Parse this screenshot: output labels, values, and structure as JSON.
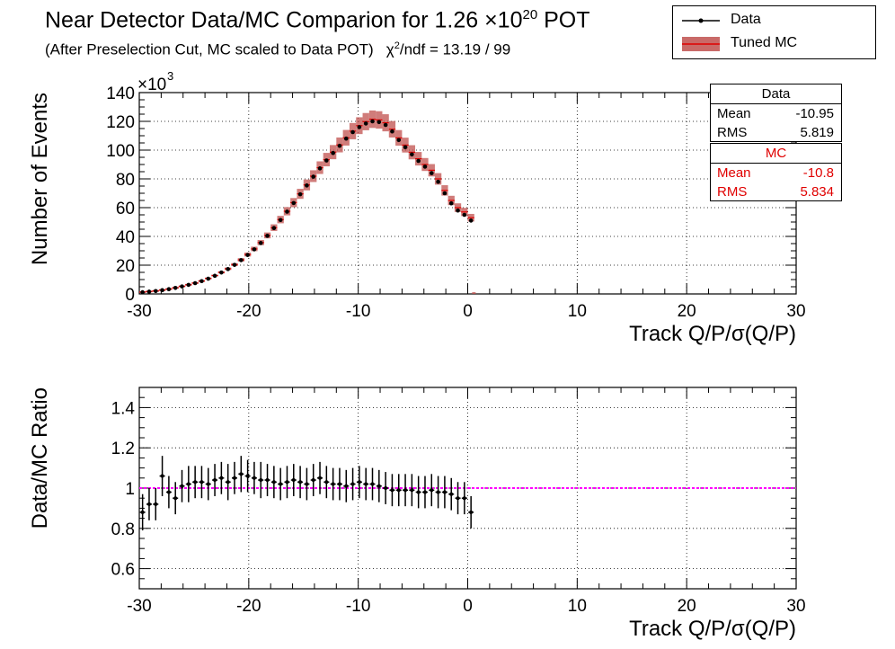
{
  "title_main": "Near Detector Data/MC Comparion for 1.26 ×10",
  "title_exp": "20",
  "title_tail": " POT",
  "subtitle_main": "(After Preselection Cut, MC scaled to Data POT)",
  "subtitle_chi": "χ",
  "subtitle_chi_exp": "2",
  "subtitle_tail": "/ndf = 13.19 / 99",
  "legend": {
    "data_label": "Data",
    "mc_label": "Tuned MC"
  },
  "stats_data": {
    "header": "Data",
    "mean_label": "Mean",
    "mean_value": "-10.95",
    "rms_label": "RMS",
    "rms_value": "5.819"
  },
  "stats_mc": {
    "header": "MC",
    "mean_label": "Mean",
    "mean_value": "-10.8",
    "rms_label": "RMS",
    "rms_value": "5.834"
  },
  "colors": {
    "data": "#000000",
    "mc_fill": "#c0504d",
    "mc_line": "#e00000",
    "ratio_line": "#ff00ff",
    "grid": "#000000"
  },
  "chart_data": [
    {
      "type": "line",
      "panel": "top",
      "xlabel": "Track Q/P/σ(Q/P)",
      "ylabel": "Number of Events",
      "y_multiplier": "×10",
      "y_multiplier_exp": "3",
      "xlim": [
        -30,
        30
      ],
      "ylim": [
        0,
        140
      ],
      "x_ticks": [
        -30,
        -20,
        -10,
        0,
        10,
        20,
        30
      ],
      "y_ticks": [
        0,
        20,
        40,
        60,
        80,
        100,
        120,
        140
      ],
      "grid": true,
      "x": [
        -29.7,
        -29.1,
        -28.5,
        -27.9,
        -27.3,
        -26.7,
        -26.1,
        -25.5,
        -24.9,
        -24.3,
        -23.7,
        -23.1,
        -22.5,
        -21.9,
        -21.3,
        -20.7,
        -20.1,
        -19.5,
        -18.9,
        -18.3,
        -17.7,
        -17.1,
        -16.5,
        -15.9,
        -15.3,
        -14.7,
        -14.1,
        -13.5,
        -12.9,
        -12.3,
        -11.7,
        -11.1,
        -10.5,
        -9.9,
        -9.3,
        -8.7,
        -8.1,
        -7.5,
        -6.9,
        -6.3,
        -5.7,
        -5.1,
        -4.5,
        -3.9,
        -3.3,
        -2.7,
        -2.1,
        -1.5,
        -0.9,
        -0.3,
        0.3
      ],
      "series": [
        {
          "name": "Data",
          "values": [
            1.2,
            1.6,
            2.0,
            2.6,
            3.3,
            4.2,
            5.2,
            6.3,
            7.5,
            8.9,
            10.6,
            12.6,
            14.9,
            17.3,
            20.2,
            23.5,
            27.1,
            31.0,
            35.4,
            40.4,
            45.8,
            51.4,
            57.2,
            63.2,
            69.3,
            75.4,
            81.5,
            87.3,
            92.8,
            98.0,
            103.0,
            108.0,
            112.5,
            116.0,
            118.5,
            120.0,
            119.5,
            117.5,
            113.0,
            107.0,
            102.0,
            97.0,
            92.5,
            88.5,
            84.0,
            78.0,
            70.0,
            63.0,
            58.0,
            55.0,
            51.0
          ]
        },
        {
          "name": "Tuned MC",
          "values": [
            1.3,
            1.7,
            2.1,
            2.7,
            3.4,
            4.3,
            5.3,
            6.4,
            7.6,
            9.0,
            10.8,
            12.8,
            15.0,
            17.5,
            20.4,
            23.7,
            27.4,
            31.3,
            35.7,
            40.7,
            46.1,
            51.7,
            57.5,
            63.5,
            69.6,
            75.8,
            81.9,
            87.8,
            93.4,
            98.6,
            103.6,
            108.6,
            113.2,
            117.0,
            119.8,
            121.5,
            121.0,
            119.0,
            114.5,
            108.5,
            103.5,
            98.5,
            94.0,
            90.0,
            86.0,
            80.0,
            72.0,
            65.0,
            60.0,
            57.0,
            53.0
          ]
        }
      ]
    },
    {
      "type": "scatter",
      "panel": "bottom",
      "xlabel": "Track Q/P/σ(Q/P)",
      "ylabel": "Data/MC Ratio",
      "xlim": [
        -30,
        30
      ],
      "ylim": [
        0.5,
        1.5
      ],
      "x_ticks": [
        -30,
        -20,
        -10,
        0,
        10,
        20,
        30
      ],
      "y_ticks": [
        0.6,
        0.8,
        1,
        1.2,
        1.4
      ],
      "y_tick_labels": [
        "0.6",
        "0.8",
        "1",
        "1.2",
        "1.4"
      ],
      "grid": true,
      "reference_line": 1,
      "x": [
        -29.7,
        -29.1,
        -28.5,
        -27.9,
        -27.3,
        -26.7,
        -26.1,
        -25.5,
        -24.9,
        -24.3,
        -23.7,
        -23.1,
        -22.5,
        -21.9,
        -21.3,
        -20.7,
        -20.1,
        -19.5,
        -18.9,
        -18.3,
        -17.7,
        -17.1,
        -16.5,
        -15.9,
        -15.3,
        -14.7,
        -14.1,
        -13.5,
        -12.9,
        -12.3,
        -11.7,
        -11.1,
        -10.5,
        -9.9,
        -9.3,
        -8.7,
        -8.1,
        -7.5,
        -6.9,
        -6.3,
        -5.7,
        -5.1,
        -4.5,
        -3.9,
        -3.3,
        -2.7,
        -2.1,
        -1.5,
        -0.9,
        -0.3,
        0.3
      ],
      "values": [
        0.88,
        0.92,
        0.92,
        1.06,
        0.98,
        0.95,
        1.01,
        1.02,
        1.03,
        1.03,
        1.02,
        1.04,
        1.05,
        1.03,
        1.05,
        1.07,
        1.06,
        1.05,
        1.04,
        1.04,
        1.03,
        1.02,
        1.03,
        1.04,
        1.03,
        1.02,
        1.04,
        1.05,
        1.03,
        1.02,
        1.02,
        1.01,
        1.02,
        1.03,
        1.02,
        1.02,
        1.01,
        1.0,
        0.99,
        0.99,
        0.99,
        0.99,
        0.98,
        0.98,
        0.99,
        0.98,
        0.98,
        0.97,
        0.95,
        0.95,
        0.88
      ],
      "errors": [
        0.09,
        0.08,
        0.08,
        0.1,
        0.08,
        0.08,
        0.08,
        0.09,
        0.08,
        0.08,
        0.08,
        0.08,
        0.08,
        0.09,
        0.08,
        0.09,
        0.08,
        0.08,
        0.09,
        0.08,
        0.08,
        0.08,
        0.08,
        0.08,
        0.08,
        0.08,
        0.08,
        0.08,
        0.08,
        0.08,
        0.08,
        0.08,
        0.08,
        0.08,
        0.08,
        0.08,
        0.08,
        0.08,
        0.08,
        0.08,
        0.08,
        0.08,
        0.08,
        0.08,
        0.08,
        0.08,
        0.08,
        0.08,
        0.08,
        0.08,
        0.08
      ]
    }
  ]
}
